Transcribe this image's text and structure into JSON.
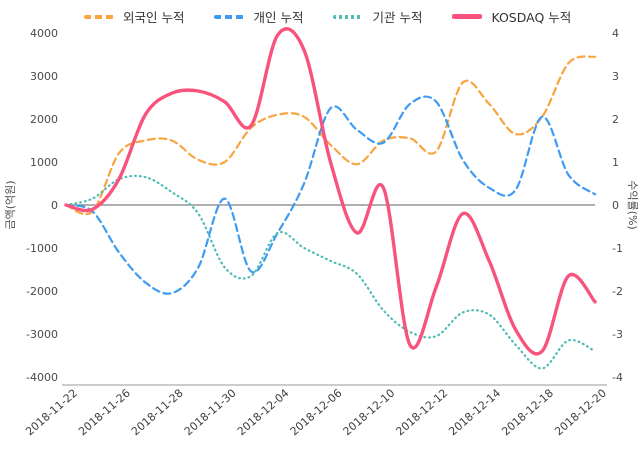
{
  "chart_data": {
    "type": "line",
    "title": "",
    "legend_position": "top",
    "grid": false,
    "zero_line": true,
    "x_dates": [
      "2018-11-22",
      "2018-11-23",
      "2018-11-26",
      "2018-11-27",
      "2018-11-28",
      "2018-11-29",
      "2018-11-30",
      "2018-12-03",
      "2018-12-04",
      "2018-12-05",
      "2018-12-06",
      "2018-12-07",
      "2018-12-10",
      "2018-12-11",
      "2018-12-12",
      "2018-12-13",
      "2018-12-14",
      "2018-12-17",
      "2018-12-18",
      "2018-12-19",
      "2018-12-20"
    ],
    "x_tick_labels": [
      "2018-11-22",
      "2018-11-26",
      "2018-11-28",
      "2018-11-30",
      "2018-12-04",
      "2018-12-06",
      "2018-12-10",
      "2018-12-12",
      "2018-12-14",
      "2018-12-18",
      "2018-12-20"
    ],
    "axes": {
      "left_label": "금액(억원)",
      "right_label": "수익률(%)",
      "left_ticks": [
        4000,
        3000,
        2000,
        1000,
        0,
        -1000,
        -2000,
        -3000,
        -4000
      ],
      "right_ticks": [
        4,
        3,
        2,
        1,
        0,
        -1,
        -2,
        -3,
        -4
      ],
      "left_range": [
        -4000,
        4000
      ],
      "right_range": [
        -4,
        4
      ]
    },
    "series": [
      {
        "id": "foreign",
        "name": "외국인 누적",
        "axis": "left",
        "style": "dashed",
        "color": "#F9A43F",
        "values": [
          0,
          -150,
          1200,
          1500,
          1500,
          1050,
          1000,
          1800,
          2100,
          2050,
          1400,
          950,
          1500,
          1550,
          1250,
          2850,
          2350,
          1650,
          2050,
          3300,
          3450
        ]
      },
      {
        "id": "individual",
        "name": "개인 누적",
        "axis": "left",
        "style": "dashed",
        "color": "#3E9BF2",
        "values": [
          0,
          -150,
          -1100,
          -1800,
          -2050,
          -1450,
          150,
          -1550,
          -650,
          500,
          2250,
          1750,
          1450,
          2350,
          2400,
          1050,
          400,
          350,
          2050,
          700,
          250
        ]
      },
      {
        "id": "institution",
        "name": "기관 누적",
        "axis": "left",
        "style": "dotted",
        "color": "#4FBCB5",
        "values": [
          0,
          150,
          600,
          650,
          300,
          -200,
          -1450,
          -1650,
          -650,
          -1000,
          -1300,
          -1600,
          -2450,
          -2950,
          -3050,
          -2500,
          -2550,
          -3250,
          -3800,
          -3150,
          -3400
        ]
      },
      {
        "id": "kosdaq",
        "name": "KOSDAQ 누적",
        "axis": "right",
        "style": "solid",
        "color": "#F8537D",
        "values": [
          0,
          -0.1,
          0.6,
          2.1,
          2.6,
          2.65,
          2.4,
          1.85,
          3.95,
          3.6,
          1.0,
          -0.65,
          0.4,
          -3.25,
          -1.9,
          -0.2,
          -1.3,
          -2.9,
          -3.4,
          -1.65,
          -2.25
        ]
      }
    ]
  }
}
